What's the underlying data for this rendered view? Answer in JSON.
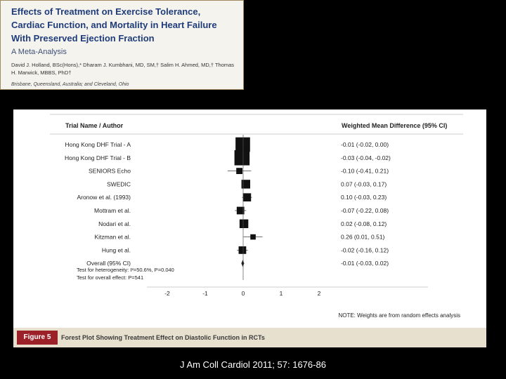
{
  "paper": {
    "title": "Effects of Treatment on Exercise Tolerance,\nCardiac Function, and Mortality in Heart Failure\nWith Preserved Ejection Fraction",
    "subtitle": "A Meta-Analysis",
    "authors": "David J. Holland, BSc(Hons),* Dharam J. Kumbhani, MD, SM,† Salim H. Ahmed, MD,† Thomas H. Marwick, MBBS, PhD†",
    "affiliation": "Brisbane, Queensland, Australia; and Cleveland, Ohio"
  },
  "figure": {
    "label": "Figure 5",
    "caption": "Forest Plot Showing Treatment Effect on Diastolic Function in RCTs",
    "note": "NOTE: Weights are from random effects analysis"
  },
  "citation": "J Am Coll Cardiol 2011; 57: 1676-86",
  "chart_data": {
    "type": "forest",
    "left_header": "Trial Name / Author",
    "right_header": "Weighted Mean Difference (95% CI)",
    "x_ticks": [
      -2,
      -1,
      0,
      1,
      2
    ],
    "xlim": [
      -2.5,
      2.5
    ],
    "rows": [
      {
        "label": "Hong Kong DHF Trial - A",
        "wmd": -0.01,
        "lo": -0.02,
        "hi": 0.0,
        "weight": 22,
        "text": "-0.01 (-0.02, 0.00)"
      },
      {
        "label": "Hong Kong DHF Trial - B",
        "wmd": -0.03,
        "lo": -0.04,
        "hi": -0.02,
        "weight": 24,
        "text": "-0.03 (-0.04, -0.02)"
      },
      {
        "label": "SENIORS Echo",
        "wmd": -0.1,
        "lo": -0.41,
        "hi": 0.21,
        "weight": 4,
        "text": "-0.10 (-0.41, 0.21)"
      },
      {
        "label": "SWEDIC",
        "wmd": 0.07,
        "lo": -0.03,
        "hi": 0.17,
        "weight": 8,
        "text": "0.07 (-0.03, 0.17)"
      },
      {
        "label": "Aronow et al. (1993)",
        "wmd": 0.1,
        "lo": -0.03,
        "hi": 0.23,
        "weight": 7,
        "text": "0.10 (-0.03, 0.23)"
      },
      {
        "label": "Mottram et al.",
        "wmd": -0.07,
        "lo": -0.22,
        "hi": 0.08,
        "weight": 6,
        "text": "-0.07 (-0.22, 0.08)"
      },
      {
        "label": "Nodari et al.",
        "wmd": 0.02,
        "lo": -0.08,
        "hi": 0.12,
        "weight": 8,
        "text": "0.02 (-0.08, 0.12)"
      },
      {
        "label": "Kitzman et al.",
        "wmd": 0.26,
        "lo": 0.01,
        "hi": 0.51,
        "weight": 3,
        "text": "0.26 (0.01, 0.51)"
      },
      {
        "label": "Hung et al.",
        "wmd": -0.02,
        "lo": -0.16,
        "hi": 0.12,
        "weight": 6,
        "text": "-0.02 (-0.16, 0.12)"
      }
    ],
    "overall": {
      "label": "Overall (95% CI)",
      "wmd": -0.01,
      "lo": -0.03,
      "hi": 0.02,
      "text": "-0.01 (-0.03, 0.02)"
    },
    "heterogeneity": "Test for heterogeneity: I²=50.6%, P=0.040",
    "overall_effect": "Test for overall effect: P=541"
  }
}
